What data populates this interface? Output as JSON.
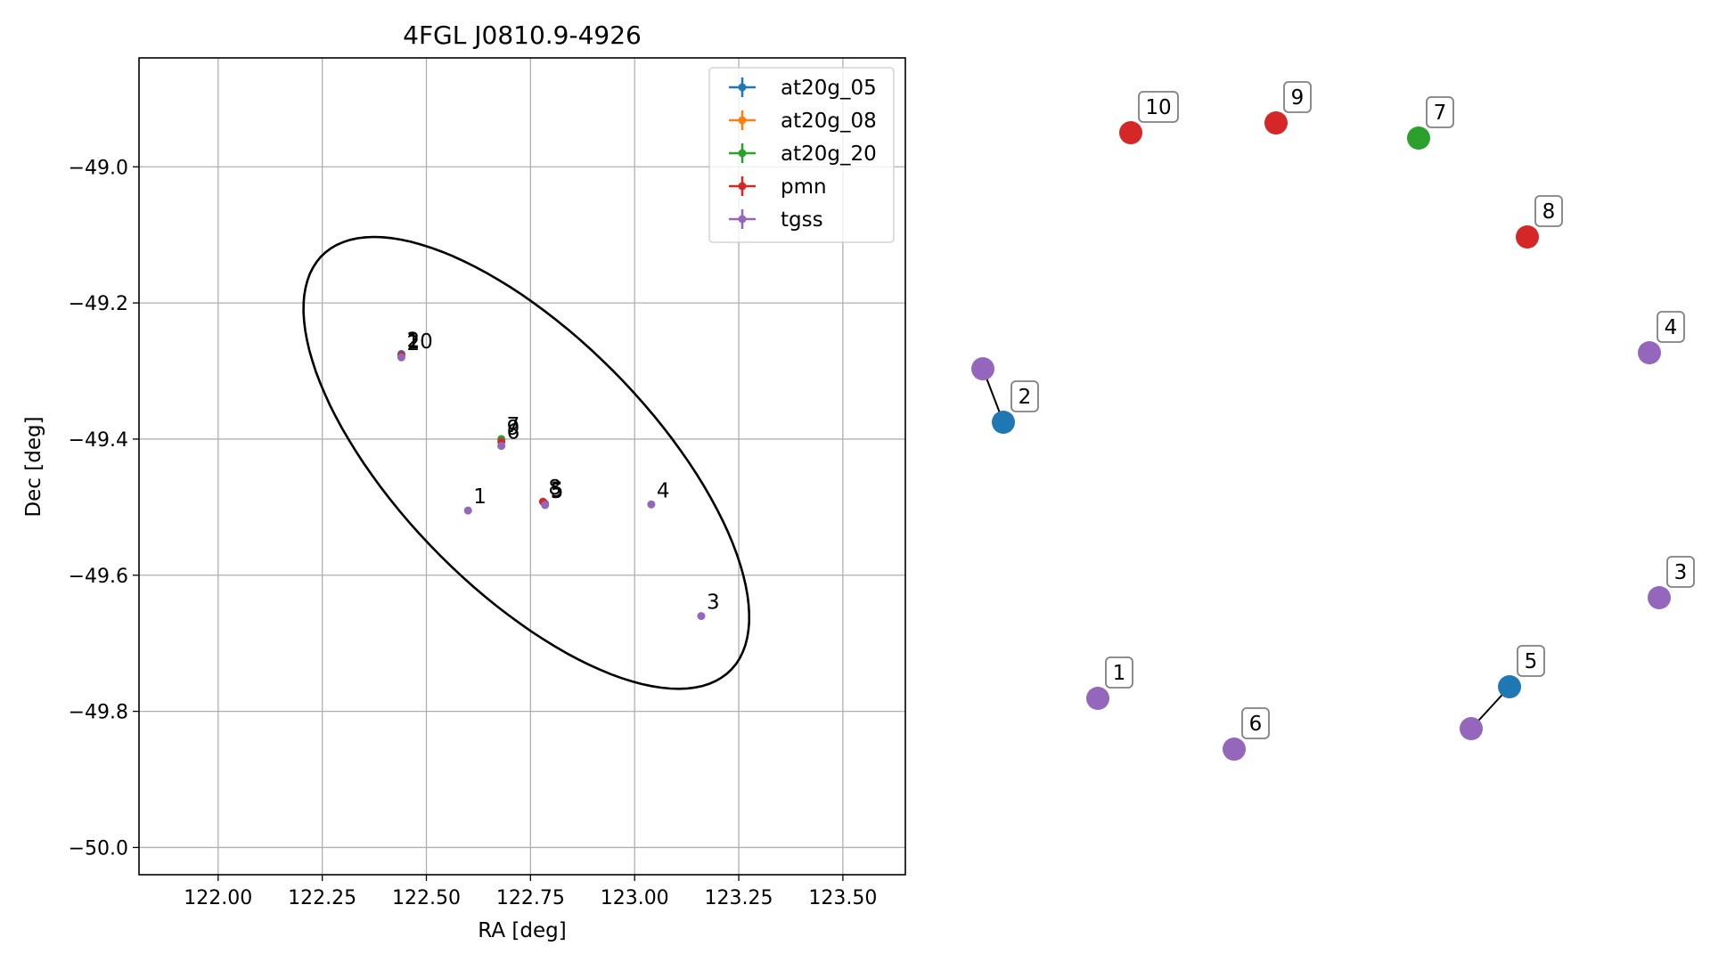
{
  "chart_data": {
    "type": "scatter",
    "title": "4FGL J0810.9-4926",
    "xlabel": "RA [deg]",
    "ylabel": "Dec [deg]",
    "xlim": [
      121.81,
      123.65
    ],
    "ylim": [
      -50.04,
      -48.84
    ],
    "xticks": [
      122.0,
      122.25,
      122.5,
      122.75,
      123.0,
      123.25,
      123.5
    ],
    "xtick_labels": [
      "122.00",
      "122.25",
      "122.50",
      "122.75",
      "123.00",
      "123.25",
      "123.50"
    ],
    "yticks": [
      -49.0,
      -49.2,
      -49.4,
      -49.6,
      -49.8,
      -50.0
    ],
    "ytick_labels": [
      "−49.0",
      "−49.2",
      "−49.4",
      "−49.6",
      "−49.8",
      "−50.0"
    ],
    "grid": true,
    "legend_position": "top-right",
    "series": [
      {
        "name": "at20g_05",
        "color": "#1f77b4",
        "points": [
          {
            "x": 122.44,
            "y": -49.275,
            "label": "2"
          },
          {
            "x": 122.785,
            "y": -49.495,
            "label": "5"
          }
        ]
      },
      {
        "name": "at20g_08",
        "color": "#ff7f0e",
        "points": []
      },
      {
        "name": "at20g_20",
        "color": "#2ca02c",
        "points": [
          {
            "x": 122.68,
            "y": -49.4,
            "label": "7"
          }
        ]
      },
      {
        "name": "pmn",
        "color": "#d62728",
        "points": [
          {
            "x": 122.78,
            "y": -49.492,
            "label": "8"
          },
          {
            "x": 122.68,
            "y": -49.404,
            "label": "9"
          },
          {
            "x": 122.44,
            "y": -49.277,
            "label": "10"
          }
        ]
      },
      {
        "name": "tgss",
        "color": "#9467bd",
        "points": [
          {
            "x": 122.6,
            "y": -49.505,
            "label": "1"
          },
          {
            "x": 122.44,
            "y": -49.28,
            "label": "2"
          },
          {
            "x": 123.16,
            "y": -49.66,
            "label": "3"
          },
          {
            "x": 123.04,
            "y": -49.496,
            "label": "4"
          },
          {
            "x": 122.785,
            "y": -49.497,
            "label": "5"
          },
          {
            "x": 122.68,
            "y": -49.41,
            "label": "6"
          }
        ]
      }
    ],
    "ellipse": {
      "center_ra": 122.74,
      "center_dec": -49.435,
      "rx_deg": 0.59,
      "ry_deg": 0.22,
      "angle_deg": -27
    },
    "right_panel": {
      "markers": [
        {
          "label": "10",
          "color": "#d62728"
        },
        {
          "label": "9",
          "color": "#d62728"
        },
        {
          "label": "7",
          "color": "#2ca02c"
        },
        {
          "label": "8",
          "color": "#d62728"
        },
        {
          "label": "4",
          "color": "#9467bd"
        },
        {
          "label": "2",
          "color": "#1f77b4"
        },
        {
          "label": "",
          "color": "#9467bd"
        },
        {
          "label": "3",
          "color": "#9467bd"
        },
        {
          "label": "1",
          "color": "#9467bd"
        },
        {
          "label": "6",
          "color": "#9467bd"
        },
        {
          "label": "5",
          "color": "#1f77b4"
        },
        {
          "label": "",
          "color": "#9467bd"
        }
      ]
    }
  }
}
